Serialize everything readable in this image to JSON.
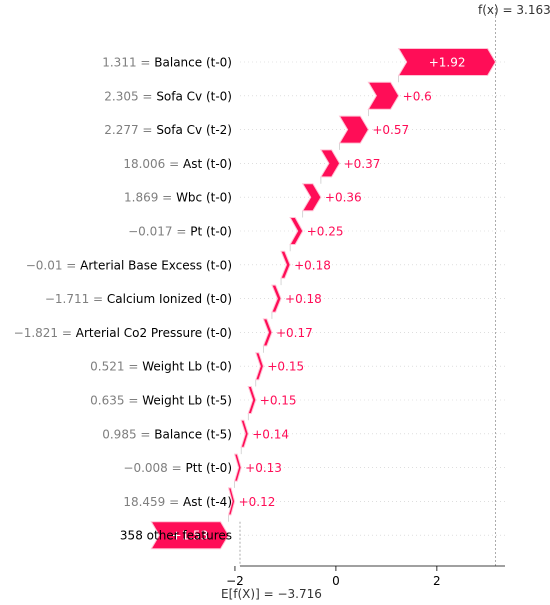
{
  "chart_data": {
    "type": "waterfall",
    "base_value_label": "E[f(X)] = −3.716",
    "base_value": -3.716,
    "output_label": "f(x) = 3.163",
    "output_value": 3.163,
    "xlim": [
      -1.9,
      3.35
    ],
    "x_ticks": [
      -2,
      0,
      2
    ],
    "x_tick_labels": [
      "−2",
      "0",
      "2"
    ],
    "colors": {
      "positive": "#ff0d57",
      "label_pos": "#ff0d57",
      "value_text": "#7f7f7f"
    },
    "features": [
      {
        "value": "1.311",
        "name": "Balance (t-0)",
        "contribution": 1.92,
        "label": "+1.92"
      },
      {
        "value": "2.305",
        "name": "Sofa Cv (t-0)",
        "contribution": 0.6,
        "label": "+0.6"
      },
      {
        "value": "2.277",
        "name": "Sofa Cv (t-2)",
        "contribution": 0.57,
        "label": "+0.57"
      },
      {
        "value": "18.006",
        "name": "Ast (t-0)",
        "contribution": 0.37,
        "label": "+0.37"
      },
      {
        "value": "1.869",
        "name": "Wbc (t-0)",
        "contribution": 0.36,
        "label": "+0.36"
      },
      {
        "value": "−0.017",
        "name": "Pt (t-0)",
        "contribution": 0.25,
        "label": "+0.25"
      },
      {
        "value": "−0.01",
        "name": "Arterial Base Excess (t-0)",
        "contribution": 0.18,
        "label": "+0.18"
      },
      {
        "value": "−1.711",
        "name": "Calcium Ionized (t-0)",
        "contribution": 0.18,
        "label": "+0.18"
      },
      {
        "value": "−1.821",
        "name": "Arterial Co2 Pressure (t-0)",
        "contribution": 0.17,
        "label": "+0.17"
      },
      {
        "value": "0.521",
        "name": "Weight Lb (t-0)",
        "contribution": 0.15,
        "label": "+0.15"
      },
      {
        "value": "0.635",
        "name": "Weight Lb (t-5)",
        "contribution": 0.15,
        "label": "+0.15"
      },
      {
        "value": "0.985",
        "name": "Balance (t-5)",
        "contribution": 0.14,
        "label": "+0.14"
      },
      {
        "value": "−0.008",
        "name": "Ptt (t-0)",
        "contribution": 0.13,
        "label": "+0.13"
      },
      {
        "value": "18.459",
        "name": "Ast (t-4)",
        "contribution": 0.12,
        "label": "+0.12"
      },
      {
        "value": "",
        "name": "358 other features",
        "contribution": 1.53,
        "label": "+1.53"
      }
    ]
  }
}
